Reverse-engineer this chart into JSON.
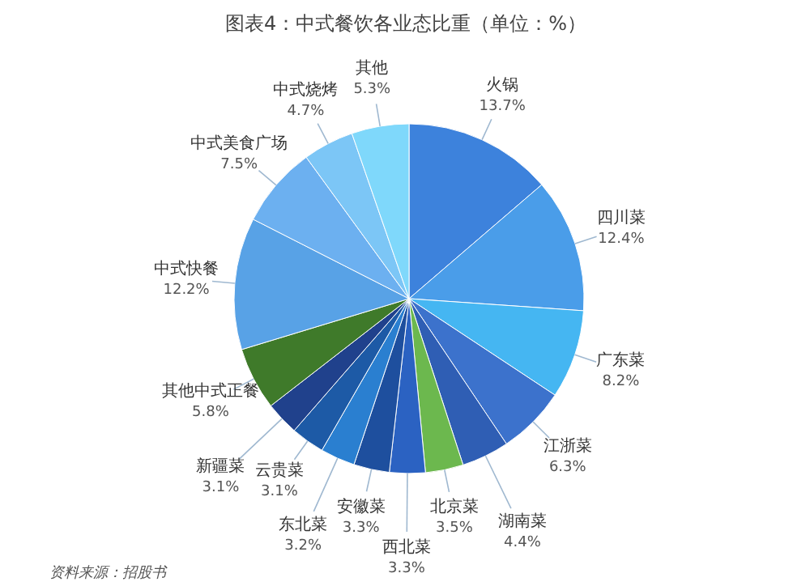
{
  "chart_data": {
    "type": "pie",
    "title": "图表4：中式餐饮各业态比重（单位：%）",
    "categories": [
      "火锅",
      "四川菜",
      "广东菜",
      "江浙菜",
      "湖南菜",
      "北京菜",
      "西北菜",
      "安徽菜",
      "东北菜",
      "云贵菜",
      "新疆菜",
      "其他中式正餐",
      "中式快餐",
      "中式美食广场",
      "中式烧烤",
      "其他"
    ],
    "values": [
      13.7,
      12.4,
      8.2,
      6.3,
      4.4,
      3.5,
      3.3,
      3.3,
      3.2,
      3.1,
      3.1,
      5.8,
      12.2,
      7.5,
      4.7,
      5.3
    ],
    "value_labels": [
      "13.7%",
      "12.4%",
      "8.2%",
      "6.3%",
      "4.4%",
      "3.5%",
      "3.3%",
      "3.3%",
      "3.2%",
      "3.1%",
      "3.1%",
      "5.8%",
      "12.2%",
      "7.5%",
      "4.7%",
      "5.3%"
    ],
    "colors": [
      "#3d82dc",
      "#4a9de9",
      "#45b6f2",
      "#3c72cc",
      "#2f5eb4",
      "#6cb84e",
      "#2b62c2",
      "#1e4f9e",
      "#2a7fd0",
      "#1d5aa6",
      "#20418c",
      "#3f7a2a",
      "#58a2e6",
      "#6cb0f0",
      "#7cc6f6",
      "#7fd8fb"
    ],
    "annotations": [
      "资料来源：招股书"
    ]
  }
}
